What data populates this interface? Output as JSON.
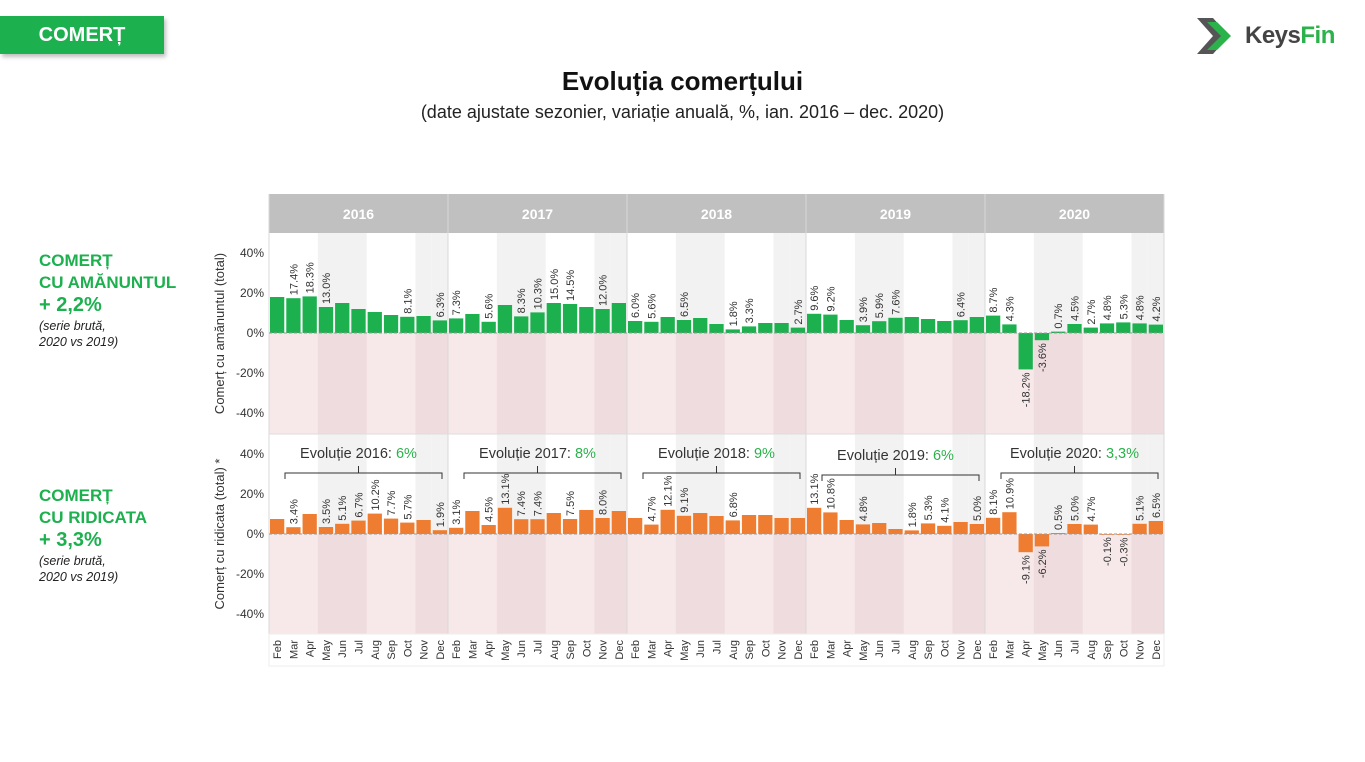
{
  "badge": "COMERȚ",
  "logo": {
    "brand": "Keys",
    "accent": "Fin"
  },
  "title": "Evoluția comerțului",
  "subtitle": "(date ajustate sezonier, variație anuală, %, ian. 2016 – dec. 2020)",
  "retail_summary": {
    "line1": "COMERȚ",
    "line2": "CU AMĂNUNTUL",
    "value": "+ 2,2%",
    "note1": "(serie brută,",
    "note2": "2020 vs 2019)"
  },
  "wholesale_summary": {
    "line1": "COMERȚ",
    "line2": "CU RIDICATA",
    "value": "+ 3,3%",
    "note1": "(serie brută,",
    "note2": "2020 vs 2019)"
  },
  "colors": {
    "retail": "#1db04f",
    "wholesale": "#ee7d31",
    "accent_green": "#2ab24b",
    "header_band": "#c0c0c0"
  },
  "chart_data": [
    {
      "type": "bar",
      "name": "retail",
      "ylabel": "Comerț cu amănuntul (total)",
      "ylim": [
        -50,
        50
      ],
      "yticks": [
        "40%",
        "20%",
        "0%",
        "-20%",
        "-40%"
      ],
      "years": [
        "2016",
        "2017",
        "2018",
        "2019",
        "2020"
      ],
      "months": [
        "Feb",
        "Mar",
        "Apr",
        "May",
        "Jun",
        "Jul",
        "Aug",
        "Sep",
        "Oct",
        "Nov",
        "Dec"
      ],
      "values": [
        [
          18.0,
          17.4,
          18.3,
          13.0,
          15.0,
          12.0,
          10.5,
          9.0,
          8.1,
          8.5,
          6.3
        ],
        [
          7.3,
          9.5,
          5.6,
          14.0,
          8.3,
          10.3,
          15.0,
          14.5,
          13.0,
          12.0,
          15.0
        ],
        [
          6.0,
          5.6,
          8.0,
          6.5,
          7.5,
          4.5,
          1.8,
          3.3,
          5.0,
          5.0,
          2.7
        ],
        [
          9.6,
          9.2,
          6.5,
          3.9,
          5.9,
          7.6,
          8.0,
          7.0,
          6.0,
          6.4,
          8.0
        ],
        [
          8.7,
          4.3,
          -18.2,
          -3.6,
          0.7,
          4.5,
          2.7,
          4.8,
          5.3,
          4.8,
          4.2
        ]
      ],
      "labels": [
        [
          "",
          "17.4%",
          "18.3%",
          "13.0%",
          "",
          "",
          "",
          "",
          "8.1%",
          "",
          "6.3%"
        ],
        [
          "7.3%",
          "",
          "5.6%",
          "",
          "8.3%",
          "10.3%",
          "15.0%",
          "14.5%",
          "",
          "12.0%",
          ""
        ],
        [
          "6.0%",
          "5.6%",
          "",
          "6.5%",
          "",
          "",
          "1.8%",
          "3.3%",
          "",
          "",
          "2.7%"
        ],
        [
          "9.6%",
          "9.2%",
          "",
          "3.9%",
          "5.9%",
          "7.6%",
          "",
          "",
          "",
          "6.4%",
          ""
        ],
        [
          "8.7%",
          "4.3%",
          "-18.2%",
          "-3.6%",
          "0.7%",
          "4.5%",
          "2.7%",
          "4.8%",
          "5.3%",
          "4.8%",
          "4.2%"
        ]
      ]
    },
    {
      "type": "bar",
      "name": "wholesale",
      "ylabel": "Comerț cu ridicata (total) *",
      "ylim": [
        -50,
        50
      ],
      "yticks": [
        "40%",
        "20%",
        "0%",
        "-20%",
        "-40%"
      ],
      "years": [
        "2016",
        "2017",
        "2018",
        "2019",
        "2020"
      ],
      "months": [
        "Feb",
        "Mar",
        "Apr",
        "May",
        "Jun",
        "Jul",
        "Aug",
        "Sep",
        "Oct",
        "Nov",
        "Dec"
      ],
      "values": [
        [
          7.5,
          3.4,
          10.0,
          3.5,
          5.1,
          6.7,
          10.2,
          7.7,
          5.7,
          7.0,
          1.9
        ],
        [
          3.1,
          11.5,
          4.5,
          13.1,
          7.4,
          7.4,
          10.5,
          7.5,
          12.0,
          8.0,
          11.5
        ],
        [
          8.0,
          4.7,
          12.1,
          9.1,
          10.5,
          9.0,
          6.8,
          9.5,
          9.5,
          8.0,
          8.0
        ],
        [
          13.1,
          10.8,
          7.0,
          4.8,
          5.5,
          2.5,
          1.8,
          5.3,
          4.1,
          6.0,
          5.0
        ],
        [
          8.1,
          10.9,
          -9.1,
          -6.2,
          0.5,
          5.0,
          4.7,
          -0.1,
          -0.3,
          5.1,
          6.5
        ]
      ],
      "labels": [
        [
          "",
          "3.4%",
          "",
          "3.5%",
          "5.1%",
          "6.7%",
          "10.2%",
          "7.7%",
          "5.7%",
          "",
          "1.9%"
        ],
        [
          "3.1%",
          "",
          "4.5%",
          "13.1%",
          "7.4%",
          "7.4%",
          "",
          "7.5%",
          "",
          "8.0%",
          ""
        ],
        [
          "",
          "4.7%",
          "12.1%",
          "9.1%",
          "",
          "",
          "6.8%",
          "",
          "",
          "",
          ""
        ],
        [
          "13.1%",
          "10.8%",
          "",
          "4.8%",
          "",
          "",
          "1.8%",
          "5.3%",
          "4.1%",
          "",
          "5.0%"
        ],
        [
          "8.1%",
          "10.9%",
          "-9.1%",
          "-6.2%",
          "0.5%",
          "5.0%",
          "4.7%",
          "-0.1%",
          "-0.3%",
          "5.1%",
          "6.5%"
        ]
      ],
      "annotations": [
        {
          "text": "Evoluție 2016:",
          "value": "6%"
        },
        {
          "text": "Evoluție 2017:",
          "value": "8%"
        },
        {
          "text": "Evoluție 2018:",
          "value": "9%"
        },
        {
          "text": "Evoluție 2019:",
          "value": "6%"
        },
        {
          "text": "Evoluție 2020:",
          "value": "3,3%"
        }
      ]
    }
  ]
}
